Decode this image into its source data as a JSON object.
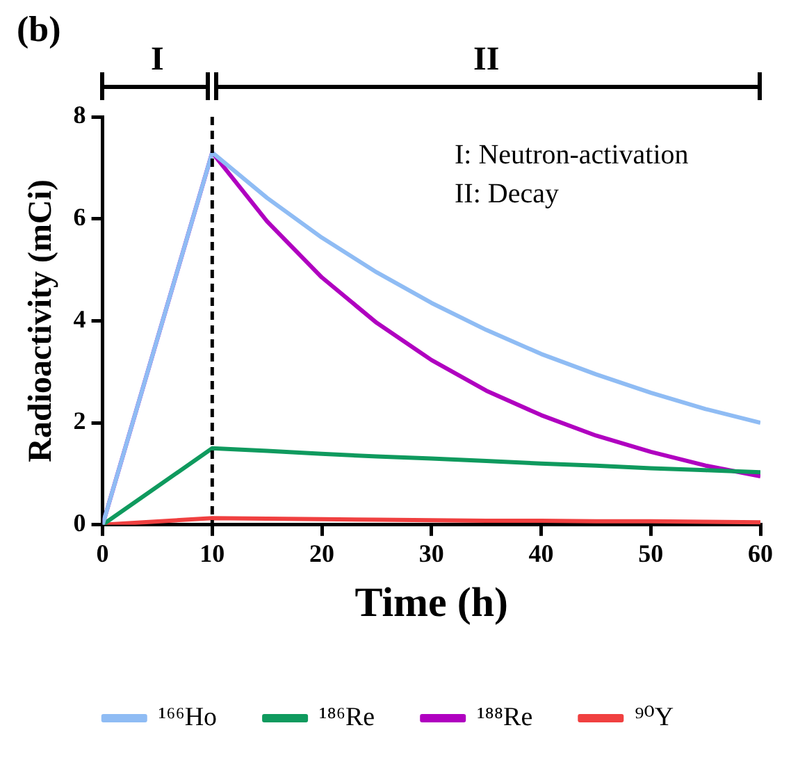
{
  "chart_data": {
    "type": "line",
    "title": "(b)",
    "xlabel": "Time (h)",
    "ylabel": "Radioactivity (mCi)",
    "x": [
      0,
      10,
      15,
      20,
      25,
      30,
      35,
      40,
      45,
      50,
      55,
      60
    ],
    "series": [
      {
        "name": "¹⁶⁶Ho",
        "color": "#8fbcf4",
        "values": [
          0,
          7.3,
          6.41,
          5.63,
          4.95,
          4.35,
          3.82,
          3.35,
          2.95,
          2.59,
          2.27,
          2.0
        ]
      },
      {
        "name": "¹⁸⁶Re",
        "color": "#0f9a5e",
        "values": [
          0,
          1.5,
          1.45,
          1.39,
          1.34,
          1.3,
          1.25,
          1.2,
          1.16,
          1.11,
          1.07,
          1.03
        ]
      },
      {
        "name": "¹⁸⁸Re",
        "color": "#b000c0",
        "values": [
          0,
          7.3,
          5.95,
          4.85,
          3.96,
          3.23,
          2.63,
          2.15,
          1.75,
          1.43,
          1.16,
          0.95
        ]
      },
      {
        "name": "⁹⁰Y",
        "color": "#f04040",
        "values": [
          0,
          0.13,
          0.12,
          0.11,
          0.1,
          0.09,
          0.08,
          0.08,
          0.07,
          0.07,
          0.06,
          0.05
        ]
      }
    ],
    "xlim": [
      0,
      60
    ],
    "xticks": [
      0,
      10,
      20,
      30,
      40,
      50,
      60
    ],
    "ylim": [
      0,
      8
    ],
    "yticks": [
      0,
      2,
      4,
      6,
      8
    ],
    "grid": false,
    "legend": "bottom",
    "marker": "none",
    "line_style": "solid",
    "ref_lines": [
      {
        "axis": "x",
        "value": 10,
        "color": "#000000",
        "line_style": "dashed"
      }
    ],
    "annotations": [
      "I",
      "II",
      "I: Neutron-activation",
      "II: Decay"
    ]
  }
}
